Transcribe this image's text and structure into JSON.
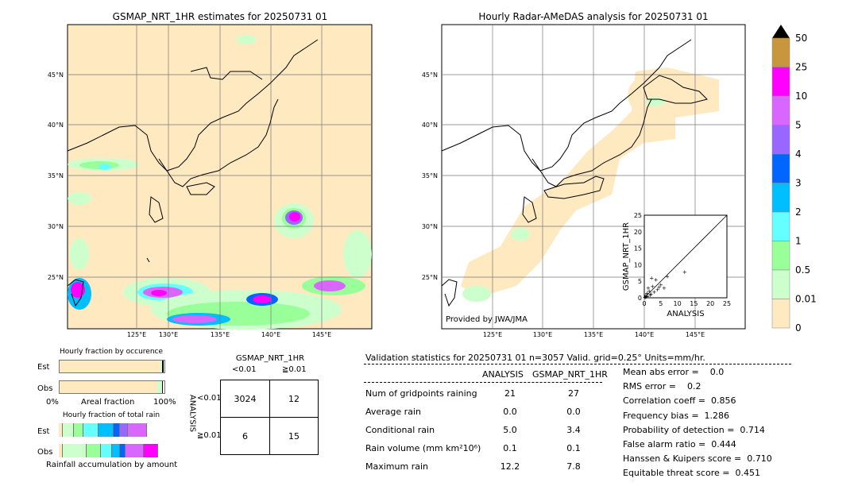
{
  "left_map": {
    "title": "GSMAP_NRT_1HR estimates for 20250731 01",
    "lat_labels": [
      "45°N",
      "40°N",
      "35°N",
      "30°N",
      "25°N"
    ],
    "lon_labels": [
      "125°E",
      "130°E",
      "135°E",
      "140°E",
      "145°E"
    ]
  },
  "right_map": {
    "title": "Hourly Radar-AMeDAS analysis for 20250731 01",
    "lat_labels": [
      "45°N",
      "40°N",
      "35°N",
      "30°N",
      "25°N"
    ],
    "lon_labels": [
      "125°E",
      "130°E",
      "135°E",
      "140°E",
      "145°E"
    ],
    "credit": "Provided by JWA/JMA"
  },
  "colorbar": {
    "labels": [
      "50",
      "25",
      "10",
      "5",
      "4",
      "3",
      "2",
      "1",
      "0.5",
      "0.01",
      "0"
    ],
    "colors": [
      "#c8963c",
      "#ff00ff",
      "#d966ff",
      "#9966ff",
      "#0066ff",
      "#00bfff",
      "#66ffff",
      "#99ff99",
      "#ccffcc",
      "#ffe9c0"
    ],
    "extend_color": "#000000"
  },
  "scatter": {
    "xlabel": "ANALYSIS",
    "ylabel": "GSMAP_NRT_1HR",
    "ticks": [
      "0",
      "5",
      "10",
      "15",
      "20",
      "25"
    ],
    "points": [
      [
        0.2,
        0.3
      ],
      [
        0.5,
        0.8
      ],
      [
        1.0,
        0.5
      ],
      [
        1.5,
        2.0
      ],
      [
        2.0,
        1.2
      ],
      [
        2.5,
        3.5
      ],
      [
        3.0,
        1.8
      ],
      [
        1.2,
        3.0
      ],
      [
        0.8,
        1.5
      ],
      [
        4.0,
        2.5
      ],
      [
        5.0,
        4.0
      ],
      [
        6.0,
        3.0
      ],
      [
        3.5,
        5.5
      ],
      [
        2.2,
        6.0
      ],
      [
        12.2,
        7.8
      ],
      [
        0.3,
        0.1
      ],
      [
        0.6,
        0.4
      ],
      [
        1.8,
        0.9
      ],
      [
        7.0,
        6.5
      ],
      [
        4.5,
        3.2
      ]
    ]
  },
  "fraction_occurrence": {
    "title": "Hourly fraction by occurence",
    "rows": [
      "Est",
      "Obs"
    ],
    "xmin": "0%",
    "xlabel": "Areal fraction",
    "xmax": "100%",
    "est_segments": [
      [
        "#ffe9c0",
        0.965
      ],
      [
        "#ccffcc",
        0.01
      ],
      [
        "#000000",
        0.015
      ]
    ],
    "obs_segments": [
      [
        "#ffe9c0",
        0.93
      ],
      [
        "#ccffcc",
        0.05
      ],
      [
        "#000000",
        0.005
      ]
    ]
  },
  "fraction_total": {
    "title": "Hourly fraction of total rain",
    "rows": [
      "Est",
      "Obs"
    ],
    "xlabel": "Rainfall accumulation by amount",
    "est_segments": [
      [
        "#ffe9c0",
        0.03
      ],
      [
        "#ccffcc",
        0.1
      ],
      [
        "#99ff99",
        0.08
      ],
      [
        "#66ffff",
        0.13
      ],
      [
        "#00bfff",
        0.14
      ],
      [
        "#0066ff",
        0.05
      ],
      [
        "#9966ff",
        0.07
      ],
      [
        "#d966ff",
        0.17
      ]
    ],
    "obs_segments": [
      [
        "#ffe9c0",
        0.03
      ],
      [
        "#ccffcc",
        0.22
      ],
      [
        "#99ff99",
        0.12
      ],
      [
        "#66ffff",
        0.1
      ],
      [
        "#00bfff",
        0.07
      ],
      [
        "#0066ff",
        0.04
      ],
      [
        "#d966ff",
        0.17
      ],
      [
        "#ff00ff",
        0.12
      ]
    ]
  },
  "contingency": {
    "title": "GSMAP_NRT_1HR",
    "col_labels": [
      "<0.01",
      "≧0.01"
    ],
    "row_axis": "ANALYSIS",
    "row_labels": [
      "<0.01",
      "≧0.01"
    ],
    "cells": [
      "3024",
      "12",
      "6",
      "15"
    ]
  },
  "validation": {
    "header": "Validation statistics for 20250731 01  n=3057 Valid. grid=0.25° Units=mm/hr.",
    "col_analysis": "ANALYSIS",
    "col_gsmap": "GSMAP_NRT_1HR",
    "rows": [
      {
        "label": "Num of gridpoints raining",
        "a": "21",
        "g": "27"
      },
      {
        "label": "Average rain",
        "a": "0.0",
        "g": "0.0"
      },
      {
        "label": "Conditional rain",
        "a": "5.0",
        "g": "3.4"
      },
      {
        "label": "Rain volume (mm km²10⁶)",
        "a": "0.1",
        "g": "0.1"
      },
      {
        "label": "Maximum rain",
        "a": "12.2",
        "g": "7.8"
      }
    ],
    "scores": [
      "Mean abs error =    0.0",
      "RMS error =    0.2",
      "Correlation coeff =  0.856",
      "Frequency bias =  1.286",
      "Probability of detection =  0.714",
      "False alarm ratio =  0.444",
      "Hanssen & Kuipers score =  0.710",
      "Equitable threat score =  0.451"
    ]
  }
}
